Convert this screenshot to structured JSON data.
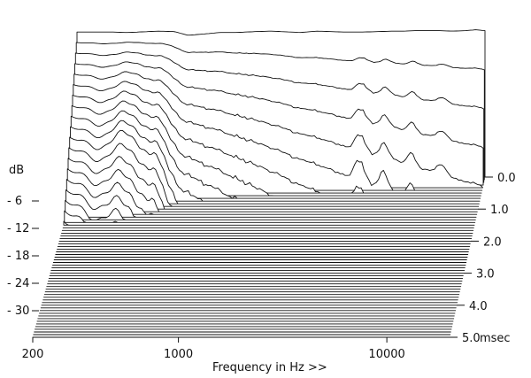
{
  "chart_data": {
    "type": "waterfall",
    "x_scale": "log",
    "xlim": [
      200,
      20000
    ],
    "x_ticks": [
      "200",
      "1000",
      "10000"
    ],
    "x_tick_values": [
      200,
      1000,
      10000
    ],
    "xlabel": "Frequency in Hz >>",
    "ylabel": "dB",
    "y_ticks": [
      "- 6",
      "- 12",
      "- 18",
      "- 24",
      "- 30"
    ],
    "y_tick_values": [
      -6,
      -12,
      -18,
      -24,
      -30
    ],
    "ylim": [
      -35,
      0
    ],
    "z_label": "msec",
    "z_ticks": [
      "0.0",
      "1.0",
      "2.0",
      "3.0",
      "4.0",
      "5.0"
    ],
    "z_tick_values": [
      0,
      1,
      2,
      3,
      4,
      5
    ],
    "zlim": [
      0,
      5
    ],
    "slice_count": 60,
    "colors": {
      "line": "#111111",
      "fill": "#ffffff"
    },
    "profile_0ms": {
      "freq_hz": [
        200,
        250,
        300,
        350,
        400,
        500,
        600,
        700,
        800,
        900,
        1000,
        1200,
        1500,
        1800,
        2000,
        2500,
        3000,
        3500,
        4000,
        5000,
        6000,
        7000,
        8000,
        9000,
        10000,
        12000,
        14000,
        16000,
        18000,
        20000
      ],
      "db": [
        -0.5,
        -0.5,
        -0.5,
        -0.6,
        -0.5,
        -0.3,
        -0.4,
        -1.2,
        -1.0,
        -0.8,
        -0.6,
        -0.6,
        -0.4,
        -0.3,
        -0.4,
        -0.6,
        -0.3,
        -0.4,
        -0.5,
        -0.5,
        -0.4,
        -0.3,
        -0.3,
        -0.2,
        -0.2,
        -0.2,
        -0.3,
        -0.2,
        0.0,
        -0.2
      ]
    }
  }
}
